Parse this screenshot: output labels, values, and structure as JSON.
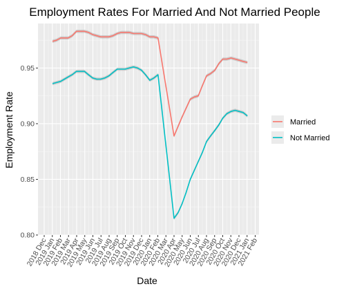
{
  "chart_data": {
    "type": "line",
    "title": "Employment Rates For Married And Not Married People",
    "xlabel": "Date",
    "ylabel": "Employment Rate",
    "x_tick_labels": [
      "2018 Dec",
      "2019 Jan",
      "2019 Feb",
      "2019 Mar",
      "2019 Apr",
      "2019 May",
      "2019 Jun",
      "2019 Jul",
      "2019 Aug",
      "2019 Sep",
      "2019 Oct",
      "2019 Nov",
      "2019 Dec",
      "2020 Jan",
      "2020 Feb",
      "2020 Mar",
      "2020 Apr",
      "2020 May",
      "2020 Jun",
      "2020 Jul",
      "2020 Aug",
      "2020 Sep",
      "2020 Oct",
      "2020 Nov",
      "2020 Dec",
      "2021 Jan",
      "2021 Feb"
    ],
    "y_ticks": [
      0.8,
      0.85,
      0.9,
      0.95
    ],
    "y_tick_labels": [
      "0.80",
      "0.85",
      "0.90",
      "0.95"
    ],
    "ylim": [
      0.8,
      0.99
    ],
    "grid": true,
    "legend_position": "right",
    "series": [
      {
        "name": "Married",
        "color": "#F8766D",
        "x": [
          "2019-01-01",
          "2019-01-16",
          "2019-02-01",
          "2019-02-15",
          "2019-03-01",
          "2019-03-16",
          "2019-04-01",
          "2019-04-16",
          "2019-05-01",
          "2019-05-16",
          "2019-06-01",
          "2019-06-16",
          "2019-07-01",
          "2019-07-16",
          "2019-08-01",
          "2019-08-16",
          "2019-09-01",
          "2019-09-16",
          "2019-10-01",
          "2019-10-16",
          "2019-11-01",
          "2019-11-16",
          "2019-12-01",
          "2019-12-16",
          "2020-01-01",
          "2020-01-16",
          "2020-02-01",
          "2020-04-01",
          "2020-05-01",
          "2020-06-01",
          "2020-06-16",
          "2020-07-01",
          "2020-07-16",
          "2020-08-01",
          "2020-08-16",
          "2020-09-01",
          "2020-09-16",
          "2020-10-01",
          "2020-10-16",
          "2020-11-01",
          "2020-11-16",
          "2020-12-01",
          "2020-12-16",
          "2021-01-01"
        ],
        "values": [
          0.974,
          0.975,
          0.977,
          0.977,
          0.977,
          0.979,
          0.983,
          0.983,
          0.983,
          0.982,
          0.98,
          0.979,
          0.978,
          0.978,
          0.978,
          0.979,
          0.981,
          0.982,
          0.982,
          0.982,
          0.981,
          0.981,
          0.981,
          0.98,
          0.978,
          0.978,
          0.977,
          0.889,
          0.906,
          0.922,
          0.924,
          0.925,
          0.934,
          0.943,
          0.945,
          0.948,
          0.954,
          0.958,
          0.958,
          0.959,
          0.958,
          0.957,
          0.956,
          0.955
        ]
      },
      {
        "name": "Not Married",
        "color": "#00BFC4",
        "x": [
          "2019-01-01",
          "2019-01-16",
          "2019-02-01",
          "2019-02-15",
          "2019-03-01",
          "2019-03-16",
          "2019-04-01",
          "2019-04-16",
          "2019-05-01",
          "2019-05-16",
          "2019-06-01",
          "2019-06-16",
          "2019-07-01",
          "2019-07-16",
          "2019-08-01",
          "2019-08-16",
          "2019-09-01",
          "2019-09-16",
          "2019-10-01",
          "2019-10-16",
          "2019-11-01",
          "2019-11-16",
          "2019-12-01",
          "2019-12-16",
          "2020-01-01",
          "2020-01-16",
          "2020-02-01",
          "2020-04-01",
          "2020-04-16",
          "2020-05-01",
          "2020-05-16",
          "2020-06-01",
          "2020-06-16",
          "2020-07-01",
          "2020-07-16",
          "2020-08-01",
          "2020-08-16",
          "2020-09-01",
          "2020-09-16",
          "2020-10-01",
          "2020-10-16",
          "2020-11-01",
          "2020-11-16",
          "2020-12-01",
          "2020-12-16",
          "2021-01-01"
        ],
        "values": [
          0.936,
          0.937,
          0.938,
          0.94,
          0.942,
          0.944,
          0.947,
          0.947,
          0.947,
          0.944,
          0.941,
          0.94,
          0.94,
          0.941,
          0.943,
          0.946,
          0.949,
          0.949,
          0.949,
          0.95,
          0.951,
          0.95,
          0.948,
          0.944,
          0.939,
          0.941,
          0.944,
          0.815,
          0.82,
          0.828,
          0.838,
          0.85,
          0.858,
          0.866,
          0.874,
          0.884,
          0.889,
          0.894,
          0.899,
          0.905,
          0.909,
          0.911,
          0.912,
          0.911,
          0.91,
          0.907
        ]
      }
    ]
  }
}
